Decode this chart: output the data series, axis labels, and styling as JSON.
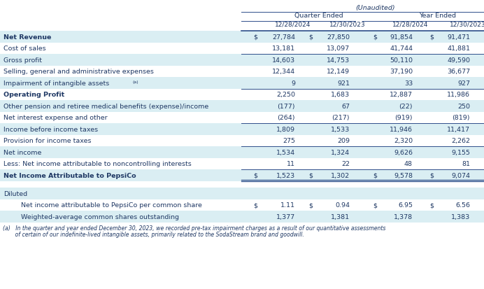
{
  "unaudited_label": "(Unaudited)",
  "quarter_ended_label": "Quarter Ended",
  "year_ended_label": "Year Ended",
  "col_headers": [
    "12/28/2024",
    "12/30/2023",
    "12/28/2024",
    "12/30/2023"
  ],
  "rows": [
    {
      "label": "Net Revenue",
      "bold": true,
      "dollar": true,
      "border_top": true,
      "double_bottom": false,
      "values": [
        "27,784",
        "27,850",
        "91,854",
        "91,471"
      ],
      "alt": true
    },
    {
      "label": "Cost of sales",
      "bold": false,
      "dollar": false,
      "border_top": false,
      "double_bottom": false,
      "values": [
        "13,181",
        "13,097",
        "41,744",
        "41,881"
      ],
      "alt": false
    },
    {
      "label": "Gross profit",
      "bold": false,
      "dollar": false,
      "border_top": true,
      "double_bottom": false,
      "values": [
        "14,603",
        "14,753",
        "50,110",
        "49,590"
      ],
      "alt": true
    },
    {
      "label": "Selling, general and administrative expenses",
      "bold": false,
      "dollar": false,
      "border_top": false,
      "double_bottom": false,
      "values": [
        "12,344",
        "12,149",
        "37,190",
        "36,677"
      ],
      "alt": false
    },
    {
      "label": "Impairment of intangible assets",
      "bold": false,
      "dollar": false,
      "border_top": false,
      "double_bottom": false,
      "values": [
        "9",
        "921",
        "33",
        "927"
      ],
      "alt": true,
      "superscript": true
    },
    {
      "label": "Operating Profit",
      "bold": true,
      "dollar": false,
      "border_top": true,
      "double_bottom": false,
      "values": [
        "2,250",
        "1,683",
        "12,887",
        "11,986"
      ],
      "alt": false
    },
    {
      "label": "Other pension and retiree medical benefits (expense)/income",
      "bold": false,
      "dollar": false,
      "border_top": false,
      "double_bottom": false,
      "values": [
        "(177)",
        "67",
        "(22)",
        "250"
      ],
      "alt": true
    },
    {
      "label": "Net interest expense and other",
      "bold": false,
      "dollar": false,
      "border_top": false,
      "double_bottom": false,
      "values": [
        "(264)",
        "(217)",
        "(919)",
        "(819)"
      ],
      "alt": false
    },
    {
      "label": "Income before income taxes",
      "bold": false,
      "dollar": false,
      "border_top": true,
      "double_bottom": false,
      "values": [
        "1,809",
        "1,533",
        "11,946",
        "11,417"
      ],
      "alt": true
    },
    {
      "label": "Provision for income taxes",
      "bold": false,
      "dollar": false,
      "border_top": false,
      "double_bottom": false,
      "values": [
        "275",
        "209",
        "2,320",
        "2,262"
      ],
      "alt": false
    },
    {
      "label": "Net income",
      "bold": false,
      "dollar": false,
      "border_top": true,
      "double_bottom": false,
      "values": [
        "1,534",
        "1,324",
        "9,626",
        "9,155"
      ],
      "alt": true
    },
    {
      "label": "Less: Net income attributable to noncontrolling interests",
      "bold": false,
      "dollar": false,
      "border_top": false,
      "double_bottom": false,
      "values": [
        "11",
        "22",
        "48",
        "81"
      ],
      "alt": false
    },
    {
      "label": "Net Income Attributable to PepsiCo",
      "bold": true,
      "dollar": true,
      "border_top": true,
      "double_bottom": true,
      "values": [
        "1,523",
        "1,302",
        "9,578",
        "9,074"
      ],
      "alt": true
    }
  ],
  "diluted_rows": [
    {
      "label": "Diluted",
      "bold": false,
      "dollar": false,
      "indent": false,
      "values": [],
      "alt": true
    },
    {
      "label": "Net income attributable to PepsiCo per common share",
      "bold": false,
      "dollar": true,
      "indent": true,
      "values": [
        "1.11",
        "0.94",
        "6.95",
        "6.56"
      ],
      "alt": false
    },
    {
      "label": "Weighted-average common shares outstanding",
      "bold": false,
      "dollar": false,
      "indent": true,
      "values": [
        "1,377",
        "1,381",
        "1,378",
        "1,383"
      ],
      "alt": true
    }
  ],
  "footnote_line1": "(a)   In the quarter and year ended December 30, 2023, we recorded pre-tax impairment charges as a result of our quantitative assessments",
  "footnote_line2": "       of certain of our indefinite-lived intangible assets, primarily related to the SodaStream brand and goodwill.",
  "bg_white": "#ffffff",
  "bg_blue": "#daeef3",
  "text_color": "#1f3864",
  "line_color": "#2e4e8a",
  "fig_bg": "#ffffff",
  "fig_width": 6.92,
  "fig_height": 4.13,
  "dpi": 100
}
